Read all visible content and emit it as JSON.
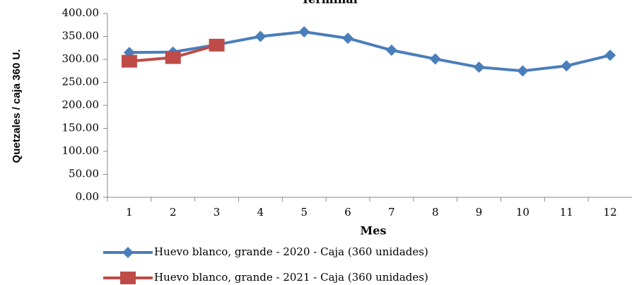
{
  "chart_data": {
    "type": "line",
    "title": "Terminal",
    "x_label": "Mes",
    "y_label": "Quetzales / caja 360 U.",
    "categories": [
      "1",
      "2",
      "3",
      "4",
      "5",
      "6",
      "7",
      "8",
      "9",
      "10",
      "11",
      "12"
    ],
    "series": [
      {
        "name": "Huevo blanco, grande - 2020 - Caja (360 unidades)",
        "color": "#4a7ebb",
        "marker": "diamond",
        "values": [
          315,
          316,
          332,
          350,
          360,
          346,
          320,
          301,
          283,
          275,
          286,
          309
        ]
      },
      {
        "name": "Huevo blanco, grande - 2021 - Caja (360 unidades)",
        "color": "#be4b48",
        "marker": "square",
        "values": [
          296,
          304,
          331,
          null,
          null,
          null,
          null,
          null,
          null,
          null,
          null,
          null
        ]
      }
    ],
    "ylim": [
      0,
      400
    ],
    "yticks": [
      {
        "value": 0,
        "label": "0.00"
      },
      {
        "value": 50,
        "label": "50.00"
      },
      {
        "value": 100,
        "label": "100.00"
      },
      {
        "value": 150,
        "label": "150.00"
      },
      {
        "value": 200,
        "label": "200.00"
      },
      {
        "value": 250,
        "label": "250.00"
      },
      {
        "value": 300,
        "label": "300.00"
      },
      {
        "value": 350,
        "label": "350.00"
      },
      {
        "value": 400,
        "label": "400.00"
      }
    ],
    "grid": false
  }
}
